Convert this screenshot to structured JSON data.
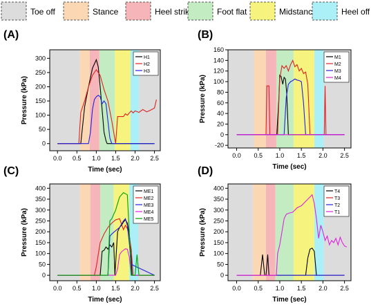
{
  "phase_legend": [
    {
      "label": "Toe off",
      "color": "#dcdcdc"
    },
    {
      "label": "Stance",
      "color": "#fbd7b4"
    },
    {
      "label": "Heel strike",
      "color": "#f6b5b9"
    },
    {
      "label": "Foot flat",
      "color": "#c4ecc2"
    },
    {
      "label": "Midstance",
      "color": "#f7f37f"
    },
    {
      "label": "Heel off",
      "color": "#aaf0f6"
    }
  ],
  "chart_data": [
    {
      "type": "line",
      "panel_label": "(A)",
      "xlabel": "Time (sec)",
      "ylabel": "Pressure (kPa)",
      "xlim": [
        -0.2,
        2.65
      ],
      "ylim": [
        -25,
        330
      ],
      "xticks": [
        "0.0",
        "0.5",
        "1.0",
        "1.5",
        "2.0",
        "2.5"
      ],
      "xtick_values": [
        0,
        0.5,
        1,
        1.5,
        2,
        2.5
      ],
      "yticks": [
        "0",
        "50",
        "100",
        "150",
        "200",
        "250",
        "300"
      ],
      "ytick_values": [
        0,
        50,
        100,
        150,
        200,
        250,
        300
      ],
      "bands": [
        {
          "phase": "Toe off",
          "from": -0.2,
          "to": 0.58
        },
        {
          "phase": "Stance",
          "from": 0.58,
          "to": 0.83
        },
        {
          "phase": "Heel strike",
          "from": 0.83,
          "to": 1.08
        },
        {
          "phase": "Foot flat",
          "from": 1.08,
          "to": 1.48
        },
        {
          "phase": "Midstance",
          "from": 1.48,
          "to": 1.88
        },
        {
          "phase": "Heel off",
          "from": 1.88,
          "to": 2.1
        },
        {
          "phase": "Toe off",
          "from": 2.1,
          "to": 2.65
        }
      ],
      "legend_position": "top-right",
      "series": [
        {
          "name": "H1",
          "color": "#000000",
          "x": [
            0,
            0.6,
            0.7,
            0.8,
            0.9,
            1.0,
            1.05,
            1.1,
            1.15,
            1.2,
            1.25,
            1.28,
            1.3,
            2.5
          ],
          "y": [
            0,
            0,
            130,
            200,
            265,
            295,
            270,
            200,
            120,
            40,
            10,
            0,
            0,
            0
          ]
        },
        {
          "name": "H2",
          "color": "#e02020",
          "x": [
            0,
            0.55,
            0.6,
            0.7,
            0.8,
            0.9,
            1.0,
            1.1,
            1.2,
            1.3,
            1.4,
            1.5,
            1.55,
            1.7,
            1.75,
            1.8,
            1.9,
            1.95,
            2.0,
            2.1,
            2.2,
            2.3,
            2.4,
            2.5,
            2.55
          ],
          "y": [
            0,
            0,
            110,
            150,
            200,
            240,
            260,
            240,
            190,
            150,
            80,
            0,
            95,
            95,
            105,
            100,
            115,
            108,
            115,
            110,
            120,
            112,
            118,
            125,
            155
          ]
        },
        {
          "name": "H3",
          "color": "#2020e0",
          "x": [
            0,
            0.8,
            0.85,
            0.9,
            0.95,
            1.0,
            1.05,
            1.1,
            1.15,
            1.2,
            1.25,
            1.3,
            1.35,
            1.4,
            1.45,
            1.5,
            2.5
          ],
          "y": [
            0,
            0,
            40,
            120,
            155,
            165,
            170,
            165,
            140,
            150,
            140,
            80,
            20,
            0,
            0,
            0,
            0
          ]
        }
      ]
    },
    {
      "type": "line",
      "panel_label": "(B)",
      "xlabel": "Time (sec)",
      "ylabel": "Pressure (kPa)",
      "xlim": [
        -0.2,
        2.65
      ],
      "ylim": [
        -25,
        160
      ],
      "xticks": [
        "0.0",
        "0.5",
        "1.0",
        "1.5",
        "2.0",
        "2.5"
      ],
      "xtick_values": [
        0,
        0.5,
        1,
        1.5,
        2,
        2.5
      ],
      "yticks": [
        "-20",
        "0",
        "20",
        "40",
        "60",
        "80",
        "100",
        "120",
        "140",
        "160"
      ],
      "ytick_values": [
        -20,
        0,
        20,
        40,
        60,
        80,
        100,
        120,
        140,
        160
      ],
      "bands": [
        {
          "phase": "Toe off",
          "from": -0.2,
          "to": 0.4
        },
        {
          "phase": "Stance",
          "from": 0.4,
          "to": 0.68
        },
        {
          "phase": "Heel strike",
          "from": 0.68,
          "to": 0.92
        },
        {
          "phase": "Foot flat",
          "from": 0.92,
          "to": 1.32
        },
        {
          "phase": "Midstance",
          "from": 1.32,
          "to": 1.8
        },
        {
          "phase": "Heel off",
          "from": 1.8,
          "to": 2.02
        },
        {
          "phase": "Toe off",
          "from": 2.02,
          "to": 2.65
        }
      ],
      "legend_position": "top-right",
      "series": [
        {
          "name": "M1",
          "color": "#000000",
          "x": [
            0,
            0.93,
            0.98,
            1.0,
            1.03,
            1.07,
            1.1,
            1.13,
            1.16,
            1.2,
            2.5
          ],
          "y": [
            0,
            0,
            70,
            112,
            110,
            95,
            108,
            105,
            80,
            0,
            0
          ]
        },
        {
          "name": "M2",
          "color": "#e02020",
          "x": [
            0,
            0.68,
            0.7,
            0.75,
            0.77,
            0.95,
            1.0,
            1.05,
            1.1,
            1.15,
            1.2,
            1.25,
            1.3,
            1.35,
            1.4,
            1.45,
            1.5,
            1.55,
            1.6,
            1.65,
            1.7,
            1.75,
            2.03,
            2.05,
            2.07,
            2.5
          ],
          "y": [
            0,
            0,
            92,
            92,
            0,
            0,
            105,
            130,
            125,
            130,
            120,
            132,
            140,
            128,
            132,
            120,
            125,
            115,
            118,
            95,
            0,
            0,
            0,
            92,
            0,
            0
          ]
        },
        {
          "name": "M3",
          "color": "#2020e0",
          "x": [
            0,
            1.1,
            1.15,
            1.2,
            1.25,
            1.3,
            1.35,
            1.4,
            1.45,
            1.5,
            1.55,
            1.6,
            2.5
          ],
          "y": [
            0,
            0,
            70,
            95,
            100,
            102,
            105,
            103,
            102,
            100,
            60,
            0,
            0
          ]
        },
        {
          "name": "M4",
          "color": "#e020e0",
          "x": [
            0,
            2.5
          ],
          "y": [
            0,
            0
          ]
        }
      ]
    },
    {
      "type": "line",
      "panel_label": "(C)",
      "xlabel": "Time (sec)",
      "ylabel": "Pressure (kPa)",
      "xlim": [
        -0.2,
        2.65
      ],
      "ylim": [
        -25,
        420
      ],
      "xticks": [
        "0.0",
        "0.5",
        "1.0",
        "1.5",
        "2.0",
        "2.5"
      ],
      "xtick_values": [
        0,
        0.5,
        1,
        1.5,
        2,
        2.5
      ],
      "yticks": [
        "0",
        "50",
        "100",
        "150",
        "200",
        "250",
        "300",
        "350",
        "400"
      ],
      "ytick_values": [
        0,
        50,
        100,
        150,
        200,
        250,
        300,
        350,
        400
      ],
      "bands": [
        {
          "phase": "Toe off",
          "from": -0.2,
          "to": 0.58
        },
        {
          "phase": "Stance",
          "from": 0.58,
          "to": 0.85
        },
        {
          "phase": "Heel strike",
          "from": 0.85,
          "to": 1.1
        },
        {
          "phase": "Foot flat",
          "from": 1.1,
          "to": 1.45
        },
        {
          "phase": "Midstance",
          "from": 1.45,
          "to": 1.85
        },
        {
          "phase": "Heel off",
          "from": 1.85,
          "to": 2.08
        },
        {
          "phase": "Toe off",
          "from": 2.08,
          "to": 2.65
        }
      ],
      "legend_position": "top-right",
      "series": [
        {
          "name": "ME1",
          "color": "#000000",
          "x": [
            0,
            1.1,
            1.15,
            1.2,
            1.25,
            1.3,
            1.35,
            1.4,
            1.45,
            1.48,
            1.55,
            1.6,
            1.65,
            1.7,
            1.75,
            1.8,
            1.85,
            1.9,
            1.92,
            2.5
          ],
          "y": [
            0,
            0,
            110,
            115,
            130,
            120,
            140,
            130,
            150,
            0,
            200,
            220,
            230,
            245,
            255,
            240,
            190,
            100,
            0,
            0
          ]
        },
        {
          "name": "ME2",
          "color": "#e02020",
          "x": [
            0,
            0.95,
            1.0,
            1.1,
            1.2,
            1.3,
            1.4,
            1.5,
            1.6,
            1.65,
            1.7,
            1.75,
            1.8,
            1.85,
            1.9,
            1.95,
            2.5
          ],
          "y": [
            0,
            0,
            40,
            150,
            190,
            220,
            240,
            255,
            260,
            235,
            210,
            230,
            215,
            180,
            120,
            0,
            0
          ]
        },
        {
          "name": "ME3",
          "color": "#2020e0",
          "x": [
            0,
            1.3,
            1.35,
            1.4,
            1.5,
            1.6,
            1.7,
            1.75,
            1.8,
            1.85,
            1.9,
            2.5
          ],
          "y": [
            0,
            0,
            180,
            190,
            205,
            220,
            250,
            260,
            230,
            150,
            50,
            0
          ]
        },
        {
          "name": "ME4",
          "color": "#e020e0",
          "x": [
            0,
            1.5,
            1.55,
            1.6,
            1.65,
            1.7,
            1.75,
            1.8,
            1.85,
            1.9,
            2.5
          ],
          "y": [
            0,
            0,
            30,
            95,
            108,
            115,
            122,
            120,
            85,
            0,
            0
          ]
        },
        {
          "name": "ME5",
          "color": "#00a000",
          "x": [
            0,
            1.3,
            1.35,
            1.4,
            1.45,
            1.5,
            1.55,
            1.6,
            1.65,
            1.7,
            1.75,
            1.8,
            1.85,
            1.9,
            1.95,
            2.0,
            2.05,
            2.1,
            2.5
          ],
          "y": [
            0,
            0,
            250,
            260,
            280,
            300,
            330,
            360,
            370,
            380,
            375,
            370,
            200,
            0,
            0,
            0,
            95,
            0,
            0
          ]
        }
      ]
    },
    {
      "type": "line",
      "panel_label": "(D)",
      "xlabel": "Time (sec)",
      "ylabel": "Pressure (kPa)",
      "xlim": [
        -0.2,
        2.65
      ],
      "ylim": [
        -25,
        420
      ],
      "xticks": [
        "0.0",
        "0.5",
        "1.0",
        "1.5",
        "2.0",
        "2.5"
      ],
      "xtick_values": [
        0,
        0.5,
        1,
        1.5,
        2,
        2.5
      ],
      "yticks": [
        "0",
        "50",
        "100",
        "150",
        "200",
        "250",
        "300",
        "350",
        "400"
      ],
      "ytick_values": [
        0,
        50,
        100,
        150,
        200,
        250,
        300,
        350,
        400
      ],
      "bands": [
        {
          "phase": "Toe off",
          "from": -0.2,
          "to": 0.38
        },
        {
          "phase": "Stance",
          "from": 0.38,
          "to": 0.68
        },
        {
          "phase": "Heel strike",
          "from": 0.68,
          "to": 0.9
        },
        {
          "phase": "Foot flat",
          "from": 0.9,
          "to": 1.32
        },
        {
          "phase": "Midstance",
          "from": 1.32,
          "to": 1.8
        },
        {
          "phase": "Heel off",
          "from": 1.8,
          "to": 2.02
        },
        {
          "phase": "Toe off",
          "from": 2.02,
          "to": 2.65
        }
      ],
      "legend_position": "top-right",
      "series": [
        {
          "name": "T4",
          "color": "#000000",
          "x": [
            0,
            0.55,
            0.6,
            0.65,
            0.68,
            0.72,
            0.75,
            1.6,
            1.65,
            1.7,
            1.75,
            1.8,
            1.85,
            2.5
          ],
          "y": [
            0,
            0,
            95,
            0,
            0,
            95,
            0,
            0,
            80,
            120,
            125,
            110,
            0,
            0
          ]
        },
        {
          "name": "T3",
          "color": "#e02020",
          "x": [
            0,
            2.5
          ],
          "y": [
            0,
            0
          ]
        },
        {
          "name": "T2",
          "color": "#2020e0",
          "x": [
            0,
            2.5
          ],
          "y": [
            0,
            0
          ]
        },
        {
          "name": "T1",
          "color": "#e020e0",
          "x": [
            0,
            0.92,
            0.95,
            1.0,
            1.05,
            1.1,
            1.15,
            1.2,
            1.3,
            1.4,
            1.5,
            1.6,
            1.7,
            1.75,
            1.8,
            1.85,
            1.9,
            1.95,
            2.0,
            2.05,
            2.1,
            2.15,
            2.2,
            2.25,
            2.3,
            2.35,
            2.4,
            2.45,
            2.5,
            2.55
          ],
          "y": [
            0,
            0,
            100,
            140,
            200,
            260,
            280,
            285,
            290,
            310,
            320,
            340,
            360,
            370,
            330,
            260,
            170,
            230,
            200,
            160,
            180,
            140,
            160,
            150,
            170,
            140,
            175,
            150,
            135,
            130
          ]
        }
      ]
    }
  ]
}
